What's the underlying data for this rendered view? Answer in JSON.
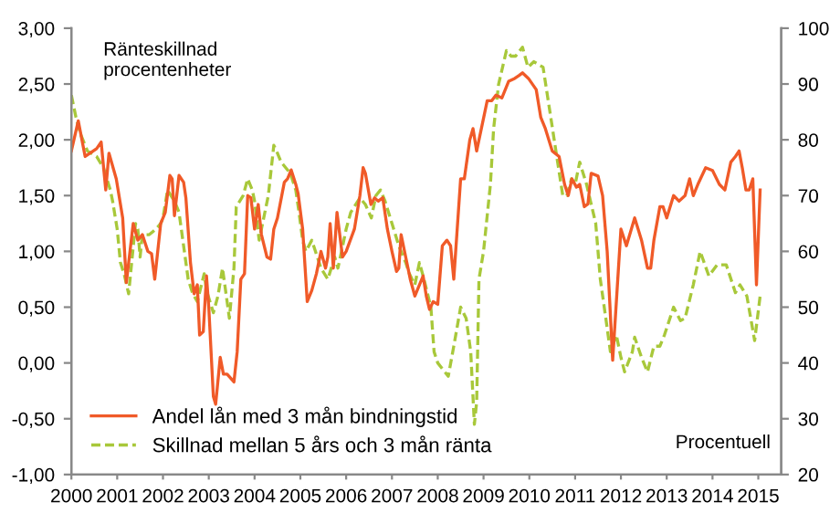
{
  "chart_data": {
    "type": "line",
    "ylabel": "Ränteskillnad\nprocentenheter",
    "y2label": "Procentuell",
    "series": [
      {
        "name": "Andel lån med 3 mån bindningstid",
        "color": "#f05a28",
        "axis": "y2",
        "line_style": "solid",
        "x": [
          2000.0,
          2000.15,
          2000.3,
          2000.55,
          2000.65,
          2000.75,
          2000.82,
          2000.98,
          2001.12,
          2001.2,
          2001.35,
          2001.45,
          2001.55,
          2001.67,
          2001.75,
          2001.82,
          2001.95,
          2002.05,
          2002.15,
          2002.2,
          2002.25,
          2002.35,
          2002.45,
          2002.5,
          2002.6,
          2002.68,
          2002.75,
          2002.8,
          2002.88,
          2002.95,
          2003.0,
          2003.1,
          2003.15,
          2003.25,
          2003.32,
          2003.4,
          2003.55,
          2003.62,
          2003.7,
          2003.78,
          2003.85,
          2003.92,
          2004.0,
          2004.08,
          2004.15,
          2004.27,
          2004.35,
          2004.42,
          2004.5,
          2004.65,
          2004.72,
          2004.8,
          2004.9,
          2004.95,
          2005.05,
          2005.15,
          2005.25,
          2005.35,
          2005.45,
          2005.55,
          2005.6,
          2005.65,
          2005.72,
          2005.8,
          2005.92,
          2006.0,
          2006.18,
          2006.3,
          2006.37,
          2006.42,
          2006.54,
          2006.62,
          2006.7,
          2006.8,
          2006.9,
          2007.0,
          2007.1,
          2007.15,
          2007.2,
          2007.3,
          2007.4,
          2007.5,
          2007.6,
          2007.68,
          2007.75,
          2007.82,
          2007.9,
          2008.0,
          2008.1,
          2008.2,
          2008.28,
          2008.35,
          2008.5,
          2008.58,
          2008.7,
          2008.77,
          2008.85,
          2009.08,
          2009.18,
          2009.27,
          2009.4,
          2009.55,
          2009.68,
          2009.77,
          2009.85,
          2009.98,
          2010.15,
          2010.25,
          2010.35,
          2010.5,
          2010.65,
          2010.77,
          2010.85,
          2010.93,
          2011.03,
          2011.1,
          2011.2,
          2011.28,
          2011.35,
          2011.5,
          2011.6,
          2011.7,
          2011.82,
          2012.0,
          2012.12,
          2012.3,
          2012.45,
          2012.58,
          2012.65,
          2012.72,
          2012.85,
          2012.92,
          2013.0,
          2013.15,
          2013.27,
          2013.4,
          2013.5,
          2013.58,
          2013.68,
          2013.85,
          2014.0,
          2014.15,
          2014.27,
          2014.4,
          2014.5,
          2014.58,
          2014.65,
          2014.73,
          2014.8,
          2014.88,
          2014.96,
          2015.04
        ],
        "values": [
          78,
          83.4,
          77,
          78.4,
          79.6,
          71,
          77.6,
          73,
          66,
          54.4,
          65,
          62,
          63,
          60,
          59.6,
          55,
          65,
          67,
          73.6,
          73,
          66.4,
          73.6,
          72.4,
          69.6,
          58,
          52.4,
          54,
          45,
          45.6,
          55.6,
          50,
          34,
          32.6,
          41,
          38,
          38,
          36.6,
          42,
          55,
          56,
          70,
          69.6,
          64,
          68.4,
          63,
          59,
          58.6,
          64,
          66,
          72.4,
          73,
          74.6,
          72,
          70.4,
          64,
          51,
          53,
          56,
          60,
          57,
          59,
          65,
          57,
          67,
          59,
          60,
          64,
          70,
          75,
          74,
          68.4,
          69.6,
          69,
          69.6,
          64,
          60,
          56.4,
          57,
          63,
          59,
          55,
          52,
          54,
          55.6,
          52,
          49.6,
          51,
          50.5,
          61,
          62,
          61,
          55,
          73,
          73,
          80,
          82,
          78,
          87,
          87,
          88,
          87.5,
          90.5,
          91,
          91.5,
          92,
          91,
          89,
          84,
          82,
          78,
          77,
          72,
          70,
          73,
          71.5,
          72,
          68,
          68.5,
          74,
          73.5,
          70,
          60,
          40.5,
          64,
          61,
          66,
          62,
          57,
          57,
          62,
          68,
          68,
          66,
          70,
          69,
          70,
          73,
          70,
          72,
          75,
          74.5,
          72,
          71,
          76,
          77,
          78,
          75,
          71,
          71,
          73,
          54,
          71
        ]
      },
      {
        "name": "Skillnad mellan 5 års och 3 mån ränta",
        "color": "#a8c83a",
        "axis": "y",
        "line_style": "dashed",
        "x": [
          2000.0,
          2000.1,
          2000.2,
          2000.35,
          2000.55,
          2000.7,
          2000.85,
          2000.9,
          2001.0,
          2001.07,
          2001.15,
          2001.25,
          2001.4,
          2001.45,
          2001.5,
          2001.55,
          2001.7,
          2001.85,
          2001.95,
          2002.0,
          2002.1,
          2002.25,
          2002.35,
          2002.45,
          2002.55,
          2002.65,
          2002.75,
          2002.9,
          2002.95,
          2003.1,
          2003.2,
          2003.3,
          2003.4,
          2003.45,
          2003.55,
          2003.6,
          2003.75,
          2003.85,
          2003.95,
          2004.0,
          2004.1,
          2004.3,
          2004.42,
          2004.48,
          2004.58,
          2004.68,
          2004.78,
          2004.9,
          2004.97,
          2005.05,
          2005.12,
          2005.25,
          2005.45,
          2005.6,
          2005.75,
          2005.82,
          2005.9,
          2006.0,
          2006.1,
          2006.3,
          2006.42,
          2006.55,
          2006.65,
          2006.75,
          2006.85,
          2007.0,
          2007.15,
          2007.3,
          2007.38,
          2007.5,
          2007.6,
          2007.7,
          2007.85,
          2007.92,
          2008.0,
          2008.23,
          2008.35,
          2008.5,
          2008.62,
          2008.72,
          2008.8,
          2008.85,
          2008.9,
          2009.0,
          2009.15,
          2009.22,
          2009.33,
          2009.5,
          2009.6,
          2009.7,
          2009.85,
          2009.97,
          2010.1,
          2010.3,
          2010.45,
          2010.58,
          2010.73,
          2010.82,
          2010.92,
          2011.0,
          2011.1,
          2011.25,
          2011.45,
          2011.55,
          2011.67,
          2011.77,
          2011.9,
          2012.0,
          2012.08,
          2012.25,
          2012.3,
          2012.45,
          2012.58,
          2012.72,
          2012.85,
          2012.95,
          2013.15,
          2013.3,
          2013.4,
          2013.58,
          2013.73,
          2013.92,
          2014.1,
          2014.3,
          2014.5,
          2014.6,
          2014.75,
          2014.92,
          2015.04
        ],
        "values": [
          2.4,
          2.2,
          2.05,
          1.9,
          1.85,
          1.75,
          1.55,
          1.45,
          1.2,
          0.9,
          0.8,
          0.62,
          1.25,
          1.2,
          0.95,
          1.15,
          1.15,
          1.2,
          1.25,
          1.3,
          1.55,
          1.45,
          1.35,
          1.05,
          0.75,
          0.62,
          0.55,
          0.8,
          0.65,
          0.45,
          0.6,
          0.85,
          0.55,
          0.4,
          0.85,
          1.4,
          1.5,
          1.65,
          1.55,
          1.45,
          1.1,
          1.5,
          1.95,
          1.9,
          1.8,
          1.75,
          1.7,
          1.55,
          1.35,
          1.1,
          1.0,
          1.1,
          0.85,
          0.75,
          0.95,
          0.85,
          1.0,
          1.2,
          1.35,
          1.48,
          1.42,
          1.3,
          1.5,
          1.55,
          1.45,
          1.25,
          1.05,
          0.9,
          0.8,
          0.7,
          0.9,
          0.75,
          0.5,
          0.1,
          0.0,
          -0.12,
          0.15,
          0.5,
          0.4,
          0.1,
          -0.55,
          -0.35,
          0.75,
          1.0,
          1.6,
          2.1,
          2.5,
          2.8,
          2.75,
          2.75,
          2.83,
          2.65,
          2.7,
          2.65,
          2.25,
          1.9,
          1.5,
          1.5,
          1.65,
          1.6,
          1.8,
          1.6,
          1.25,
          0.75,
          0.4,
          0.1,
          0.25,
          0.05,
          -0.08,
          0.1,
          0.23,
          0.05,
          -0.08,
          0.15,
          0.15,
          0.25,
          0.5,
          0.38,
          0.4,
          0.7,
          1.0,
          0.78,
          0.88,
          0.88,
          0.63,
          0.7,
          0.6,
          0.2,
          0.6
        ]
      }
    ],
    "xlim": [
      2000,
      2015.5
    ],
    "xticks": [
      2000,
      2001,
      2002,
      2003,
      2004,
      2005,
      2006,
      2007,
      2008,
      2009,
      2010,
      2011,
      2012,
      2013,
      2014,
      2015
    ],
    "ylim": [
      -1,
      3
    ],
    "yticks": [
      {
        "value": -1,
        "label": "-1,00"
      },
      {
        "value": -0.5,
        "label": "-0,50"
      },
      {
        "value": 0,
        "label": "0,00"
      },
      {
        "value": 0.5,
        "label": "0,50"
      },
      {
        "value": 1,
        "label": "1,00"
      },
      {
        "value": 1.5,
        "label": "1,50"
      },
      {
        "value": 2,
        "label": "2,00"
      },
      {
        "value": 2.5,
        "label": "2,50"
      },
      {
        "value": 3,
        "label": "3,00"
      }
    ],
    "y2lim": [
      20,
      100
    ],
    "y2ticks": [
      20,
      30,
      40,
      50,
      60,
      70,
      80,
      90,
      100
    ],
    "legend": "bottom",
    "grid": false,
    "marker": "none"
  }
}
